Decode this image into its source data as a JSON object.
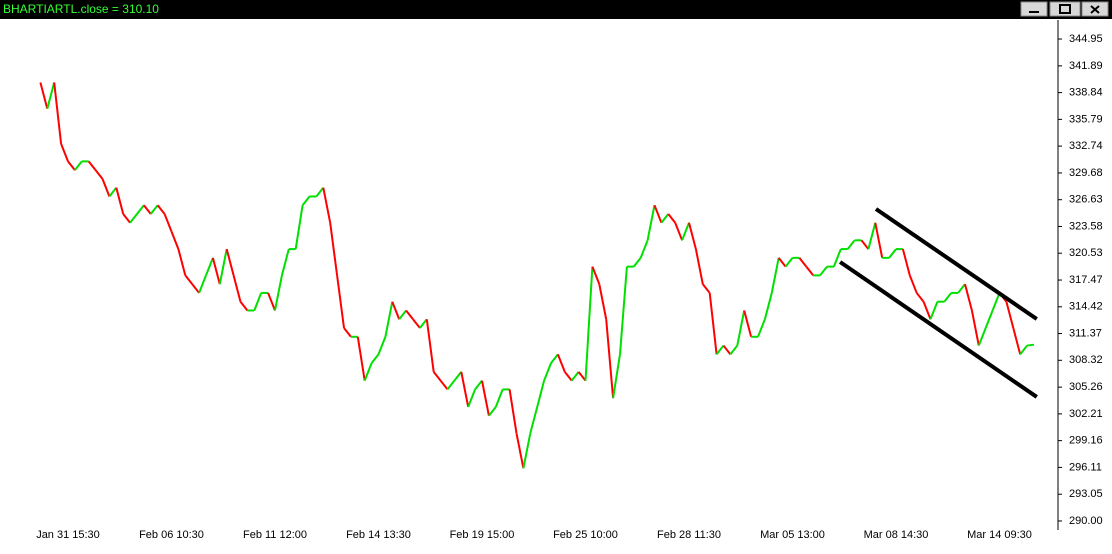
{
  "chart_data": {
    "type": "line",
    "title": "BHARTIARTL.close = 310.10",
    "categories": [
      null,
      null,
      null,
      null,
      "Jan 31 15:30",
      null,
      null,
      null,
      null,
      null,
      null,
      null,
      null,
      null,
      null,
      null,
      null,
      null,
      null,
      "Feb 06 10:30",
      null,
      null,
      null,
      null,
      null,
      null,
      null,
      null,
      null,
      null,
      null,
      null,
      null,
      null,
      "Feb 11 12:00",
      null,
      null,
      null,
      null,
      null,
      null,
      null,
      null,
      null,
      null,
      null,
      null,
      null,
      null,
      "Feb 14 13:30",
      null,
      null,
      null,
      null,
      null,
      null,
      null,
      null,
      null,
      null,
      null,
      null,
      null,
      null,
      "Feb 19 15:00",
      null,
      null,
      null,
      null,
      null,
      null,
      null,
      null,
      null,
      null,
      null,
      null,
      null,
      null,
      "Feb 25 10:00",
      null,
      null,
      null,
      null,
      null,
      null,
      null,
      null,
      null,
      null,
      null,
      null,
      null,
      null,
      "Feb 28 11:30",
      null,
      null,
      null,
      null,
      null,
      null,
      null,
      null,
      null,
      null,
      null,
      null,
      null,
      null,
      "Mar 05 13:00",
      null,
      null,
      null,
      null,
      null,
      null,
      null,
      null,
      null,
      null,
      null,
      null,
      null,
      null,
      "Mar 08 14:30",
      null,
      null,
      null,
      null,
      null,
      null,
      null,
      null,
      null,
      null,
      null,
      null,
      null,
      null,
      "Mar 14 09:30",
      null,
      null,
      null,
      null,
      null
    ],
    "series": [
      {
        "name": "BHARTIARTL",
        "values": [
          340,
          337,
          340,
          333,
          331,
          330,
          331,
          331,
          330,
          329,
          327,
          328,
          325,
          324,
          325,
          326,
          325,
          326,
          325,
          323,
          321,
          318,
          317,
          316,
          318,
          320,
          317,
          321,
          318,
          315,
          314,
          314,
          316,
          316,
          314,
          318,
          321,
          321,
          326,
          327,
          327,
          328,
          324,
          318,
          312,
          311,
          311,
          306,
          308,
          309,
          311,
          315,
          313,
          314,
          313,
          312,
          313,
          307,
          306,
          305,
          306,
          307,
          303,
          305,
          306,
          302,
          303,
          305,
          305,
          300,
          296,
          300,
          303,
          306,
          308,
          309,
          307,
          306,
          307,
          306,
          319,
          317,
          313,
          304,
          309,
          319,
          319,
          320,
          322,
          326,
          324,
          325,
          324,
          322,
          324,
          321,
          317,
          316,
          309,
          310,
          309,
          310,
          314,
          311,
          311,
          313,
          316,
          320,
          319,
          320,
          320,
          319,
          318,
          318,
          319,
          319,
          321,
          321,
          322,
          322,
          321,
          324,
          320,
          320,
          321,
          321,
          318,
          316,
          315,
          313,
          315,
          315,
          316,
          316,
          317,
          314,
          310,
          312,
          314,
          316,
          315,
          312,
          309,
          310,
          310.1
        ]
      }
    ],
    "up_color": "#00e000",
    "down_color": "#ff0000",
    "trendlines": [
      {
        "x": [
          121.1,
          144.4
        ],
        "values": [
          325.57,
          313.03
        ]
      },
      {
        "x": [
          115.9,
          144.4
        ],
        "values": [
          319.53,
          304.14
        ]
      }
    ],
    "ylim": [
      288.97,
      347.12
    ],
    "yticks": [
      {
        "value": 290,
        "label": "290.00"
      },
      293.05,
      296.11,
      299.16,
      302.21,
      305.26,
      308.32,
      311.37,
      314.42,
      317.47,
      320.53,
      323.58,
      326.63,
      329.68,
      332.74,
      335.79,
      338.84,
      341.89,
      344.95
    ]
  }
}
